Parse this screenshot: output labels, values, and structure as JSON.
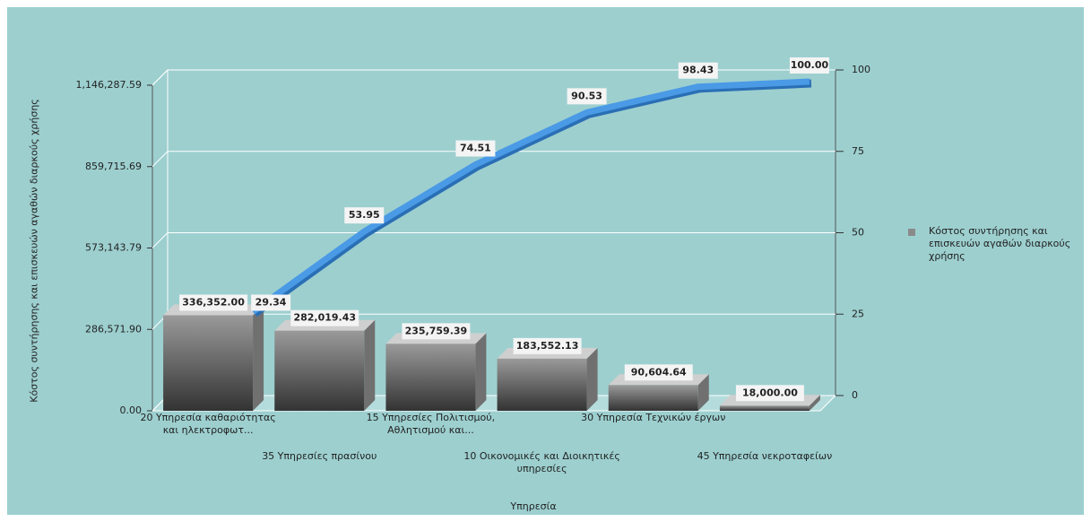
{
  "chart_data": {
    "type": "pareto",
    "categories": [
      "20 Υπηρεσία καθαριότητας\nκαι ηλεκτροφωτ...",
      "35 Υπηρεσίες πρασίνου",
      "15 Υπηρεσίες Πολιτισμού,\nΑθλητισμού και...",
      "10 Οικονομικές και Διοικητικές\nυπηρεσίες",
      "30 Υπηρεσία Τεχνικών έργων",
      "45 Υπηρεσία νεκροταφείων"
    ],
    "series": [
      {
        "name": "Κόστος συντήρησης και επισκευών αγαθών διαρκούς χρήσης",
        "color": "#8a8a8a",
        "values": [
          336352.0,
          282019.43,
          235759.39,
          183552.13,
          90604.64,
          18000.0
        ],
        "value_labels": [
          "336,352.00",
          "282,019.43",
          "235,759.39",
          "183,552.13",
          "90,604.64",
          "18,000.00"
        ]
      }
    ],
    "cumulative": {
      "color": "#4a9ae6",
      "axis": "y2",
      "values": [
        29.34,
        53.95,
        74.51,
        90.53,
        98.43,
        100.0
      ],
      "value_labels": [
        "29.34",
        "53.95",
        "74.51",
        "90.53",
        "98.43",
        "100.00"
      ]
    },
    "ylabel": "Κόστος συντήρησης και επισκευών αγαθών διαρκούς χρήσης",
    "xlabel": "Υπηρεσία",
    "ylim": [
      0,
      1146287.59
    ],
    "yticks": [
      {
        "value": 0,
        "label": "0.00"
      },
      {
        "value": 286571.9,
        "label": "286,571.90"
      },
      {
        "value": 573143.79,
        "label": "573,143.79"
      },
      {
        "value": 859715.69,
        "label": "859,715.69"
      },
      {
        "value": 1146287.59,
        "label": "1,146,287.59"
      }
    ],
    "y2lim": [
      0,
      100
    ],
    "y2ticks": [
      0,
      25,
      50,
      75,
      100
    ],
    "grid": true
  }
}
